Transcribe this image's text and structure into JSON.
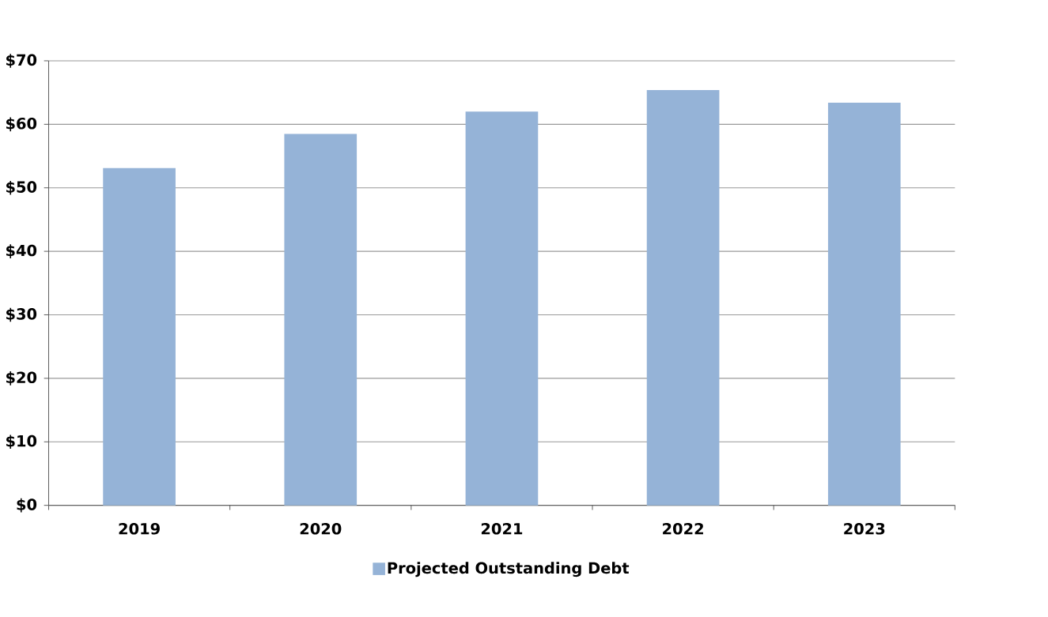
{
  "chart_data": {
    "type": "bar",
    "categories": [
      "2019",
      "2020",
      "2021",
      "2022",
      "2023"
    ],
    "series": [
      {
        "name": "Projected Outstanding Debt",
        "color": "#95b3d7",
        "values": [
          53.1,
          58.5,
          62.0,
          65.4,
          63.4
        ]
      }
    ],
    "ylim": [
      0,
      70
    ],
    "yticks": [
      {
        "value": 0,
        "label": "$0"
      },
      {
        "value": 10,
        "label": "$10"
      },
      {
        "value": 20,
        "label": "$20"
      },
      {
        "value": 30,
        "label": "$30"
      },
      {
        "value": 40,
        "label": "$40"
      },
      {
        "value": 50,
        "label": "$50"
      },
      {
        "value": 60,
        "label": "$60"
      },
      {
        "value": 70,
        "label": "$70"
      }
    ],
    "grid": "y",
    "legend": "bottom"
  }
}
